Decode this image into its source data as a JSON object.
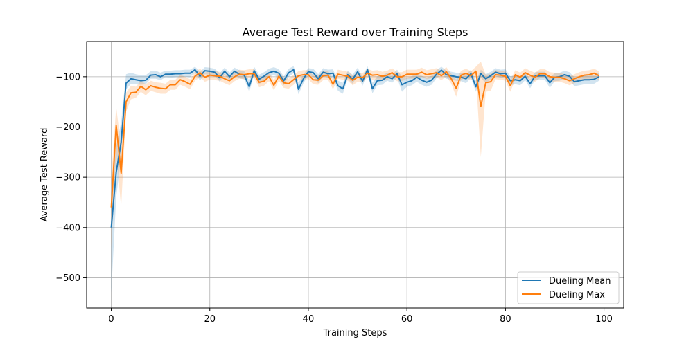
{
  "chart_data": {
    "type": "line",
    "title": "Average Test Reward over Training Steps",
    "xlabel": "Training Steps",
    "ylabel": "Average Test Reward",
    "xlim": [
      -5,
      104
    ],
    "ylim": [
      -560,
      -30
    ],
    "xticks": [
      0,
      20,
      40,
      60,
      80,
      100
    ],
    "xtick_labels": [
      "0",
      "20",
      "40",
      "60",
      "80",
      "100"
    ],
    "yticks": [
      -500,
      -400,
      -300,
      -200,
      -100
    ],
    "ytick_labels": [
      "−500",
      "−400",
      "−300",
      "−200",
      "−100"
    ],
    "grid": true,
    "legend_position": "lower-right",
    "series": [
      {
        "name": "Dueling Mean",
        "color": "#1f77b4",
        "x": [
          0,
          1,
          2,
          3,
          4,
          5,
          6,
          7,
          8,
          9,
          10,
          11,
          12,
          13,
          14,
          15,
          16,
          17,
          18,
          19,
          20,
          21,
          22,
          23,
          24,
          25,
          26,
          27,
          28,
          29,
          30,
          31,
          32,
          33,
          34,
          35,
          36,
          37,
          38,
          39,
          40,
          41,
          42,
          43,
          44,
          45,
          46,
          47,
          48,
          49,
          50,
          51,
          52,
          53,
          54,
          55,
          56,
          57,
          58,
          59,
          60,
          61,
          62,
          63,
          64,
          65,
          66,
          67,
          68,
          69,
          70,
          71,
          72,
          73,
          74,
          75,
          76,
          77,
          78,
          79,
          80,
          81,
          82,
          83,
          84,
          85,
          86,
          87,
          88,
          89,
          90,
          91,
          92,
          93,
          94,
          95,
          96,
          97,
          98,
          99
        ],
        "values": [
          -400,
          -290,
          -230,
          -113,
          -104,
          -106,
          -108,
          -107,
          -97,
          -96,
          -100,
          -95,
          -95,
          -94,
          -94,
          -93,
          -93,
          -86,
          -99,
          -88,
          -89,
          -91,
          -102,
          -89,
          -100,
          -89,
          -95,
          -97,
          -120,
          -88,
          -105,
          -99,
          -92,
          -89,
          -93,
          -108,
          -92,
          -86,
          -125,
          -104,
          -90,
          -92,
          -104,
          -91,
          -94,
          -93,
          -118,
          -124,
          -96,
          -105,
          -90,
          -109,
          -86,
          -124,
          -108,
          -107,
          -100,
          -104,
          -94,
          -116,
          -111,
          -108,
          -101,
          -107,
          -111,
          -107,
          -95,
          -87,
          -96,
          -98,
          -100,
          -101,
          -104,
          -94,
          -120,
          -94,
          -104,
          -98,
          -91,
          -94,
          -93,
          -108,
          -106,
          -108,
          -99,
          -114,
          -99,
          -98,
          -98,
          -112,
          -101,
          -100,
          -96,
          -99,
          -110,
          -108,
          -106,
          -106,
          -105,
          -100
        ],
        "band_lower": [
          -530,
          -340,
          -260,
          -125,
          -114,
          -115,
          -116,
          -115,
          -104,
          -104,
          -107,
          -101,
          -102,
          -101,
          -101,
          -100,
          -101,
          -92,
          -108,
          -95,
          -96,
          -98,
          -110,
          -96,
          -108,
          -96,
          -103,
          -105,
          -130,
          -96,
          -115,
          -107,
          -100,
          -97,
          -101,
          -117,
          -100,
          -93,
          -135,
          -113,
          -97,
          -100,
          -113,
          -99,
          -102,
          -101,
          -128,
          -134,
          -104,
          -114,
          -98,
          -118,
          -93,
          -133,
          -117,
          -116,
          -108,
          -112,
          -102,
          -130,
          -120,
          -117,
          -110,
          -116,
          -120,
          -116,
          -103,
          -94,
          -104,
          -106,
          -108,
          -109,
          -113,
          -102,
          -130,
          -102,
          -113,
          -106,
          -99,
          -102,
          -101,
          -117,
          -115,
          -117,
          -107,
          -123,
          -107,
          -106,
          -106,
          -122,
          -109,
          -108,
          -104,
          -107,
          -119,
          -117,
          -115,
          -115,
          -114,
          -108
        ],
        "band_upper": [
          -330,
          -240,
          -190,
          -95,
          -92,
          -95,
          -97,
          -97,
          -89,
          -88,
          -92,
          -88,
          -88,
          -87,
          -87,
          -86,
          -86,
          -80,
          -90,
          -81,
          -82,
          -84,
          -93,
          -82,
          -92,
          -82,
          -87,
          -89,
          -108,
          -80,
          -96,
          -91,
          -84,
          -81,
          -85,
          -99,
          -84,
          -79,
          -112,
          -95,
          -83,
          -84,
          -95,
          -83,
          -86,
          -85,
          -108,
          -112,
          -88,
          -96,
          -82,
          -100,
          -79,
          -112,
          -99,
          -98,
          -92,
          -96,
          -86,
          -100,
          -102,
          -99,
          -92,
          -98,
          -102,
          -98,
          -87,
          -80,
          -88,
          -90,
          -92,
          -93,
          -95,
          -86,
          -108,
          -86,
          -95,
          -90,
          -83,
          -86,
          -85,
          -99,
          -97,
          -99,
          -91,
          -105,
          -91,
          -90,
          -90,
          -102,
          -93,
          -92,
          -88,
          -91,
          -101,
          -99,
          -97,
          -97,
          -96,
          -92
        ]
      },
      {
        "name": "Dueling Max",
        "color": "#ff7f0e",
        "x": [
          0,
          1,
          2,
          3,
          4,
          5,
          6,
          7,
          8,
          9,
          10,
          11,
          12,
          13,
          14,
          15,
          16,
          17,
          18,
          19,
          20,
          21,
          22,
          23,
          24,
          25,
          26,
          27,
          28,
          29,
          30,
          31,
          32,
          33,
          34,
          35,
          36,
          37,
          38,
          39,
          40,
          41,
          42,
          43,
          44,
          45,
          46,
          47,
          48,
          49,
          50,
          51,
          52,
          53,
          54,
          55,
          56,
          57,
          58,
          59,
          60,
          61,
          62,
          63,
          64,
          65,
          66,
          67,
          68,
          69,
          70,
          71,
          72,
          73,
          74,
          75,
          76,
          77,
          78,
          79,
          80,
          81,
          82,
          83,
          84,
          85,
          86,
          87,
          88,
          89,
          90,
          91,
          92,
          93,
          94,
          95,
          96,
          97,
          98,
          99
        ],
        "values": [
          -360,
          -197,
          -292,
          -150,
          -132,
          -131,
          -119,
          -126,
          -118,
          -121,
          -123,
          -124,
          -116,
          -116,
          -106,
          -110,
          -115,
          -99,
          -92,
          -101,
          -97,
          -98,
          -99,
          -104,
          -108,
          -100,
          -95,
          -96,
          -94,
          -94,
          -111,
          -109,
          -100,
          -117,
          -99,
          -112,
          -114,
          -106,
          -98,
          -96,
          -96,
          -106,
          -107,
          -98,
          -97,
          -115,
          -95,
          -97,
          -99,
          -107,
          -101,
          -102,
          -93,
          -97,
          -96,
          -99,
          -97,
          -92,
          -100,
          -100,
          -95,
          -95,
          -95,
          -91,
          -96,
          -94,
          -92,
          -98,
          -90,
          -104,
          -123,
          -97,
          -93,
          -98,
          -89,
          -159,
          -112,
          -110,
          -96,
          -97,
          -99,
          -118,
          -96,
          -101,
          -92,
          -97,
          -101,
          -94,
          -94,
          -100,
          -101,
          -101,
          -104,
          -108,
          -104,
          -100,
          -97,
          -96,
          -93,
          -98
        ],
        "band_lower": [
          -440,
          -250,
          -360,
          -170,
          -145,
          -142,
          -130,
          -137,
          -128,
          -131,
          -134,
          -134,
          -126,
          -126,
          -116,
          -120,
          -125,
          -108,
          -101,
          -110,
          -106,
          -107,
          -108,
          -113,
          -117,
          -109,
          -104,
          -105,
          -103,
          -103,
          -121,
          -118,
          -109,
          -127,
          -108,
          -122,
          -124,
          -116,
          -107,
          -105,
          -105,
          -115,
          -116,
          -107,
          -106,
          -125,
          -104,
          -106,
          -108,
          -117,
          -110,
          -111,
          -102,
          -106,
          -105,
          -108,
          -106,
          -101,
          -109,
          -109,
          -104,
          -104,
          -104,
          -100,
          -105,
          -103,
          -101,
          -107,
          -99,
          -114,
          -140,
          -106,
          -102,
          -107,
          -98,
          -260,
          -130,
          -128,
          -105,
          -106,
          -108,
          -130,
          -105,
          -110,
          -101,
          -106,
          -110,
          -103,
          -103,
          -109,
          -110,
          -110,
          -113,
          -117,
          -113,
          -109,
          -106,
          -105,
          -102,
          -107
        ],
        "band_upper": [
          -300,
          -160,
          -240,
          -132,
          -118,
          -120,
          -108,
          -115,
          -108,
          -111,
          -112,
          -114,
          -106,
          -106,
          -96,
          -100,
          -105,
          -90,
          -84,
          -92,
          -88,
          -89,
          -90,
          -95,
          -99,
          -91,
          -86,
          -87,
          -85,
          -85,
          -101,
          -100,
          -91,
          -107,
          -90,
          -102,
          -104,
          -96,
          -89,
          -87,
          -87,
          -97,
          -98,
          -89,
          -88,
          -105,
          -86,
          -88,
          -90,
          -97,
          -92,
          -93,
          -84,
          -88,
          -87,
          -90,
          -88,
          -83,
          -91,
          -91,
          -86,
          -86,
          -86,
          -82,
          -87,
          -85,
          -83,
          -89,
          -81,
          -94,
          -106,
          -88,
          -84,
          -89,
          -80,
          -70,
          -96,
          -94,
          -87,
          -88,
          -90,
          -106,
          -87,
          -92,
          -83,
          -88,
          -92,
          -85,
          -85,
          -91,
          -92,
          -92,
          -95,
          -99,
          -95,
          -91,
          -88,
          -87,
          -84,
          -89
        ]
      }
    ]
  }
}
